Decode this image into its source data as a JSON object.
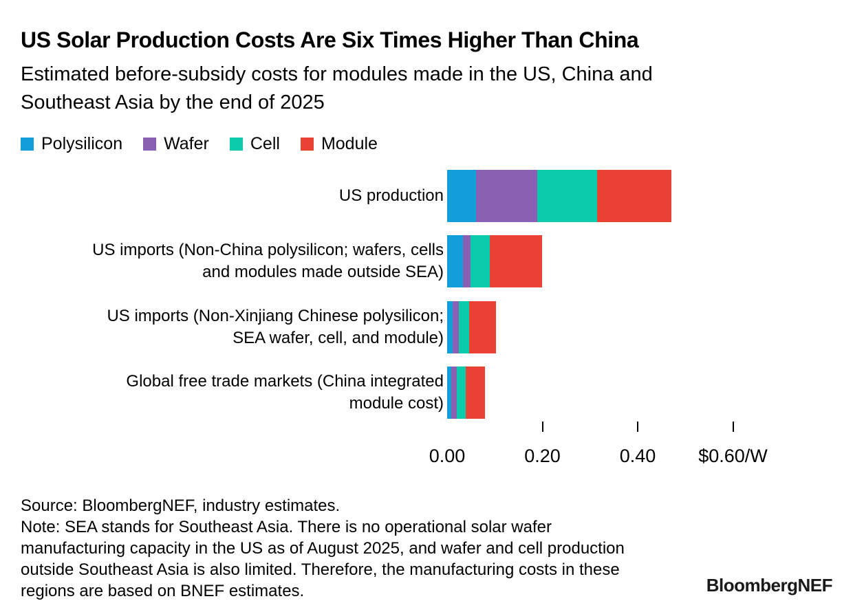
{
  "header": {
    "title": "US Solar Production Costs Are Six Times Higher Than China",
    "subtitle_line1": "Estimated before-subsidy costs for modules made in the US, China and",
    "subtitle_line2": "Southeast Asia by the end of 2025"
  },
  "chart_data": {
    "type": "bar",
    "orientation": "horizontal",
    "stacked": true,
    "unit": "$/W",
    "title": "US Solar Production Costs Are Six Times Higher Than China",
    "subtitle": "Estimated before-subsidy costs for modules made in the US, China and Southeast Asia by the end of 2025",
    "legend_position": "top",
    "grid": false,
    "categories": [
      "US production",
      "US imports (Non-China polysilicon; wafers, cells and modules made outside SEA)",
      "US imports (Non-Xinjiang Chinese polysilicon; SEA wafer, cell, and module)",
      "Global free trade markets (China integrated module cost)"
    ],
    "category_lines": [
      [
        "US production"
      ],
      [
        "US imports (Non-China polysilicon; wafers, cells",
        "and modules made outside SEA)"
      ],
      [
        "US imports (Non-Xinjiang Chinese polysilicon;",
        "SEA wafer, cell, and module)"
      ],
      [
        "Global free trade markets (China integrated",
        "module cost)"
      ]
    ],
    "series": [
      {
        "name": "Polysilicon",
        "color": "#149ED9",
        "values": [
          0.061,
          0.033,
          0.012,
          0.009
        ]
      },
      {
        "name": "Wafer",
        "color": "#8A60B5",
        "values": [
          0.129,
          0.016,
          0.013,
          0.011
        ]
      },
      {
        "name": "Cell",
        "color": "#0BCBAD",
        "values": [
          0.125,
          0.04,
          0.022,
          0.019
        ]
      },
      {
        "name": "Module",
        "color": "#EA4134",
        "values": [
          0.156,
          0.11,
          0.056,
          0.041
        ]
      }
    ],
    "totals": [
      0.471,
      0.199,
      0.103,
      0.08
    ],
    "x_axis": {
      "range": [
        0,
        0.62
      ],
      "ticks": [
        {
          "value": 0.0,
          "label": "0.00",
          "tick_mark": false
        },
        {
          "value": 0.2,
          "label": "0.20",
          "tick_mark": true
        },
        {
          "value": 0.4,
          "label": "0.40",
          "tick_mark": true
        },
        {
          "value": 0.6,
          "label": "$0.60/W",
          "tick_mark": true
        }
      ]
    }
  },
  "footer": {
    "source": "Source: BloombergNEF, industry estimates.",
    "note": "Note: SEA stands for Southeast Asia. There is no operational solar wafer manufacturing capacity in the US as of August 2025, and wafer and cell production outside Southeast Asia is also limited. Therefore, the manufacturing costs in these regions are based on BNEF estimates.",
    "logo": "BloombergNEF"
  }
}
